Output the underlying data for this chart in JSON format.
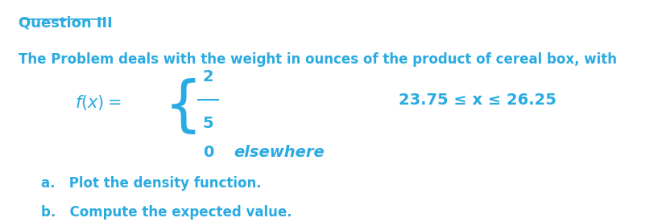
{
  "title": "Question III",
  "subtitle": "The Problem deals with the weight in ounces of the product of cereal box, with",
  "fx_label": "$f(x) =$",
  "fraction_num": "2",
  "fraction_den": "5",
  "case1_condition": "23.75 ≤ x ≤ 26.25",
  "case2_value": "0",
  "case2_condition": "elsewhere",
  "item_a": "a.   Plot the density function.",
  "item_b": "b.   Compute the expected value.",
  "text_color": "#29ABE2",
  "background_color": "#ffffff",
  "font_size_title": 13,
  "font_size_body": 12,
  "font_size_math": 13,
  "font_size_items": 12
}
